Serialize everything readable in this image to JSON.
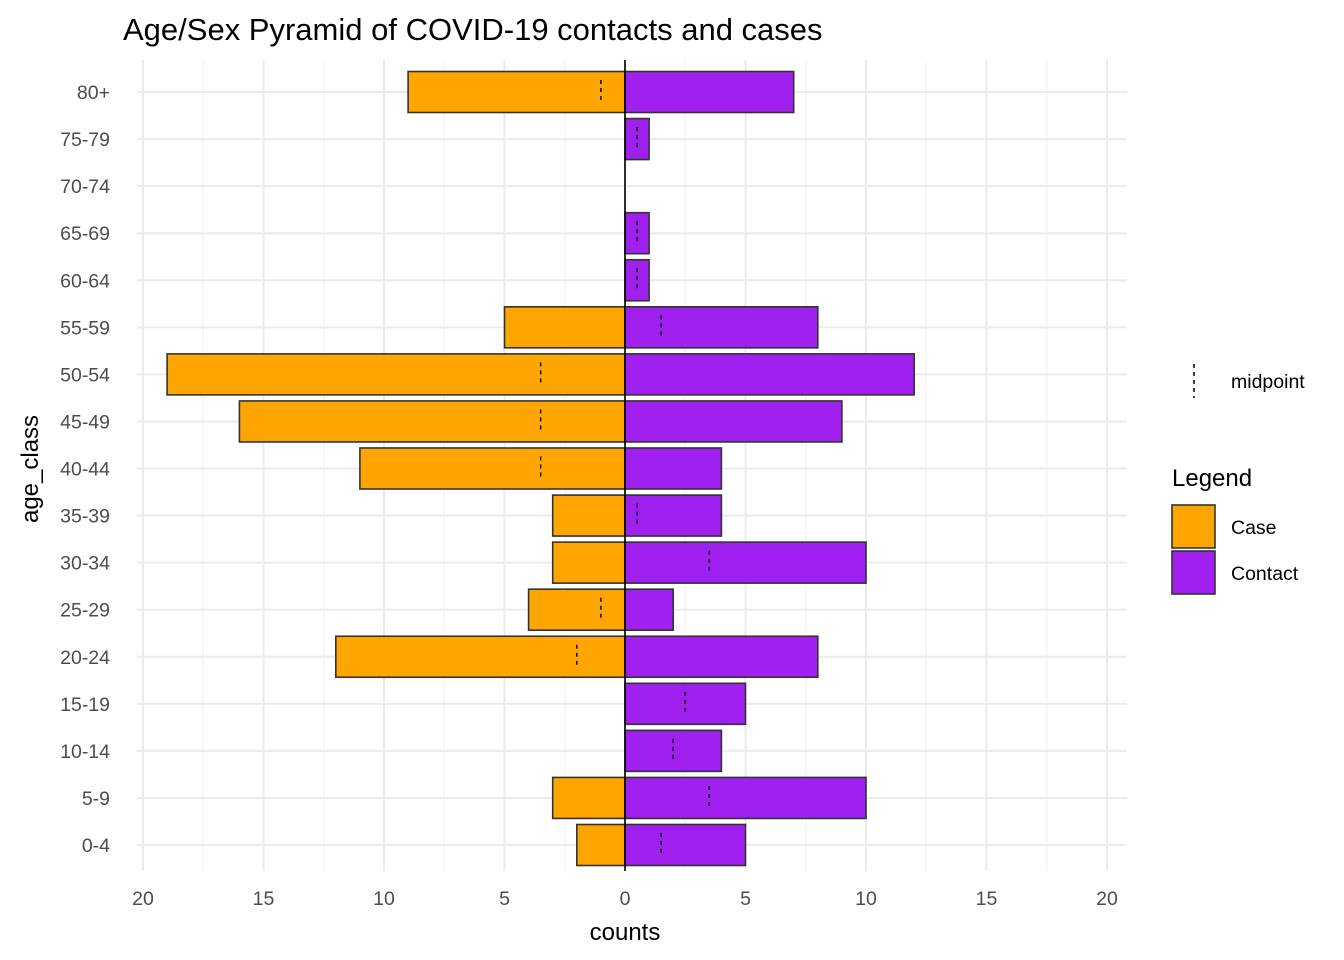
{
  "chart_data": {
    "type": "bar",
    "title": "Age/Sex Pyramid of COVID-19 contacts and cases",
    "xlabel": "counts",
    "ylabel": "age_class",
    "xlim": [
      -21,
      21
    ],
    "x_ticks": [
      -20,
      -15,
      -10,
      -5,
      0,
      5,
      10,
      15,
      20
    ],
    "x_tick_labels": [
      "20",
      "15",
      "10",
      "5",
      "0",
      "5",
      "10",
      "15",
      "20"
    ],
    "categories": [
      "0-4",
      "5-9",
      "10-14",
      "15-19",
      "20-24",
      "25-29",
      "30-34",
      "35-39",
      "40-44",
      "45-49",
      "50-54",
      "55-59",
      "60-64",
      "65-69",
      "70-74",
      "75-79",
      "80+"
    ],
    "series": [
      {
        "name": "Case",
        "color": "#FFA500",
        "direction": "left",
        "values": [
          2,
          3,
          0,
          0,
          12,
          4,
          3,
          3,
          11,
          16,
          19,
          5,
          0,
          0,
          0,
          0,
          9
        ]
      },
      {
        "name": "Contact",
        "color": "#A020F0",
        "direction": "right",
        "values": [
          5,
          10,
          4,
          5,
          8,
          2,
          10,
          4,
          4,
          9,
          12,
          8,
          1,
          1,
          0,
          1,
          7
        ]
      }
    ],
    "midpoint": {
      "name": "midpoint",
      "values": [
        1.5,
        3.5,
        2,
        2.5,
        -2,
        -1,
        3.5,
        0.5,
        -3.5,
        -3.5,
        -3.5,
        1.5,
        0.5,
        0.5,
        null,
        0.5,
        -1
      ]
    },
    "legend": {
      "title": "Legend",
      "items": [
        "Case",
        "Contact"
      ],
      "position": "right"
    },
    "grid": true
  }
}
